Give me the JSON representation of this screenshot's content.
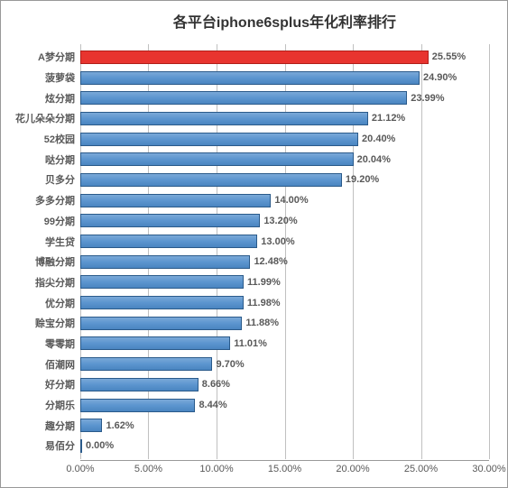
{
  "chart": {
    "type": "bar-horizontal",
    "title": "各平台iphone6splus年化利率排行",
    "title_fontsize": 16,
    "title_color": "#333333",
    "background_color": "#ffffff",
    "border_color": "#999999",
    "xmin": 0,
    "xmax": 30,
    "xtick_step": 5,
    "xtick_format": "percent2",
    "grid_color": "#c0c0c0",
    "bar_color": "#5c95cf",
    "bar_border_color": "#2a5a8a",
    "highlight_color": "#e8342f",
    "highlight_border": "#b01f1a",
    "label_color": "#595959",
    "category_fontsize": 11,
    "value_fontsize": 11,
    "xticks": [
      {
        "value": 0,
        "label": "0.00%"
      },
      {
        "value": 5,
        "label": "5.00%"
      },
      {
        "value": 10,
        "label": "10.00%"
      },
      {
        "value": 15,
        "label": "15.00%"
      },
      {
        "value": 20,
        "label": "20.00%"
      },
      {
        "value": 25,
        "label": "25.00%"
      },
      {
        "value": 30,
        "label": "30.00%"
      }
    ],
    "series": [
      {
        "category": "A梦分期",
        "value": 25.55,
        "label": "25.55%",
        "highlight": true
      },
      {
        "category": "菠萝袋",
        "value": 24.9,
        "label": "24.90%",
        "highlight": false
      },
      {
        "category": "炫分期",
        "value": 23.99,
        "label": "23.99%",
        "highlight": false
      },
      {
        "category": "花儿朵朵分期",
        "value": 21.12,
        "label": "21.12%",
        "highlight": false
      },
      {
        "category": "52校园",
        "value": 20.4,
        "label": "20.40%",
        "highlight": false
      },
      {
        "category": "哒分期",
        "value": 20.04,
        "label": "20.04%",
        "highlight": false
      },
      {
        "category": "贝多分",
        "value": 19.2,
        "label": "19.20%",
        "highlight": false
      },
      {
        "category": "多多分期",
        "value": 14.0,
        "label": "14.00%",
        "highlight": false
      },
      {
        "category": "99分期",
        "value": 13.2,
        "label": "13.20%",
        "highlight": false
      },
      {
        "category": "学生贷",
        "value": 13.0,
        "label": "13.00%",
        "highlight": false
      },
      {
        "category": "博融分期",
        "value": 12.48,
        "label": "12.48%",
        "highlight": false
      },
      {
        "category": "指尖分期",
        "value": 11.99,
        "label": "11.99%",
        "highlight": false
      },
      {
        "category": "优分期",
        "value": 11.98,
        "label": "11.98%",
        "highlight": false
      },
      {
        "category": "赊宝分期",
        "value": 11.88,
        "label": "11.88%",
        "highlight": false
      },
      {
        "category": "零零期",
        "value": 11.01,
        "label": "11.01%",
        "highlight": false
      },
      {
        "category": "佰潮网",
        "value": 9.7,
        "label": "9.70%",
        "highlight": false
      },
      {
        "category": "好分期",
        "value": 8.66,
        "label": "8.66%",
        "highlight": false
      },
      {
        "category": "分期乐",
        "value": 8.44,
        "label": "8.44%",
        "highlight": false
      },
      {
        "category": "趣分期",
        "value": 1.62,
        "label": "1.62%",
        "highlight": false
      },
      {
        "category": "易佰分",
        "value": 0.0,
        "label": "0.00%",
        "highlight": false
      }
    ]
  }
}
